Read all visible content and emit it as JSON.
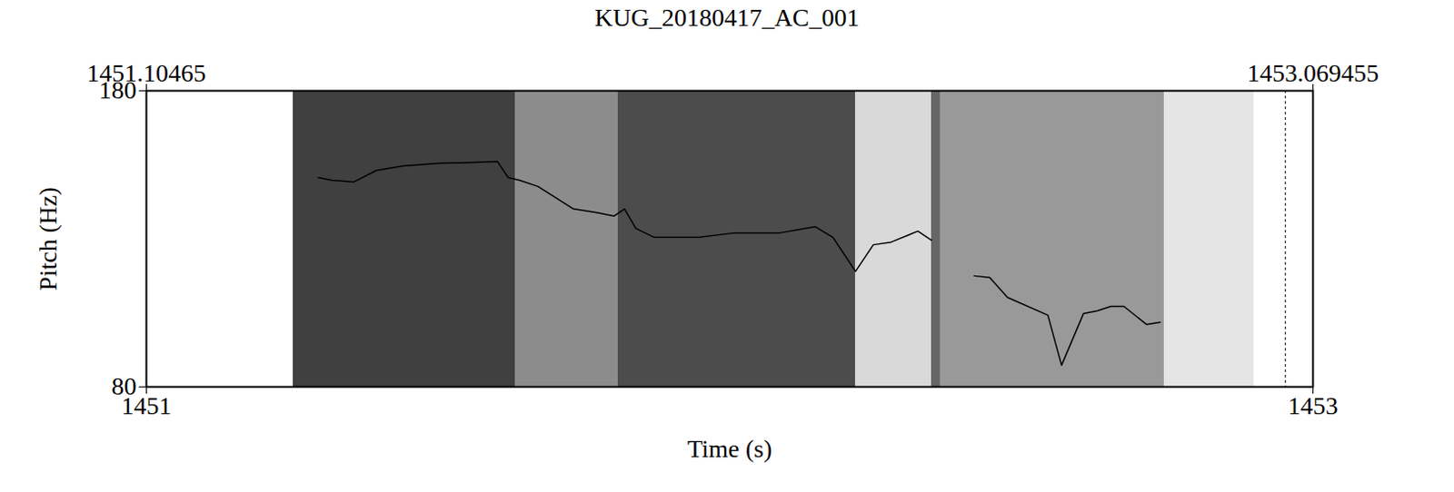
{
  "chart_data": {
    "type": "line",
    "title": "KUG_20180417_AC_001",
    "x_label": "Time (s)",
    "y_label": "Pitch (Hz)",
    "xlim": [
      1451.10465,
      1453.069455
    ],
    "ylim": [
      80,
      180
    ],
    "xticks": [
      {
        "value": 1451.10465,
        "label": "1451"
      },
      {
        "value": 1453.069455,
        "label": "1453"
      }
    ],
    "top_xticks": [
      {
        "value": 1451.10465,
        "label": "1451.10465"
      },
      {
        "value": 1453.069455,
        "label": "1453.069455"
      }
    ],
    "yticks": [
      80,
      180
    ],
    "color": "#000000",
    "grid": false,
    "cursor_time": 1453.023,
    "spectrogram": [
      {
        "start": 1451.352,
        "end": 1451.726,
        "intensity": 0.75
      },
      {
        "start": 1451.726,
        "end": 1451.899,
        "intensity": 0.45
      },
      {
        "start": 1451.899,
        "end": 1452.299,
        "intensity": 0.7
      },
      {
        "start": 1452.299,
        "end": 1452.427,
        "intensity": 0.15
      },
      {
        "start": 1452.427,
        "end": 1452.442,
        "intensity": 0.6
      },
      {
        "start": 1452.442,
        "end": 1452.819,
        "intensity": 0.4
      },
      {
        "start": 1452.819,
        "end": 1452.97,
        "intensity": 0.1
      }
    ],
    "x": [
      1451.394,
      1451.417,
      1451.454,
      1451.492,
      1451.537,
      1451.598,
      1451.658,
      1451.696,
      1451.714,
      1451.733,
      1451.764,
      1451.824,
      1451.862,
      1451.892,
      1451.91,
      1451.929,
      1451.96,
      1452.035,
      1452.095,
      1452.171,
      1452.231,
      1452.261,
      1452.299,
      1452.329,
      1452.359,
      1452.404,
      1452.427,
      1452.463,
      1452.499,
      1452.525,
      1452.555,
      1452.623,
      1452.646,
      1452.683,
      1452.706,
      1452.729,
      1452.751,
      1452.789,
      1452.812
    ],
    "values": [
      150.7,
      149.8,
      149.2,
      153.1,
      154.6,
      155.5,
      155.8,
      156.1,
      150.7,
      149.8,
      147.7,
      140.1,
      138.9,
      137.7,
      140.1,
      133.5,
      130.5,
      130.5,
      132,
      132,
      134.1,
      130.5,
      119,
      128,
      128.9,
      132.6,
      129.5,
      null,
      117.5,
      116.9,
      110.2,
      104.2,
      87.3,
      104.8,
      105.7,
      107.2,
      107.2,
      101.1,
      101.8
    ]
  }
}
